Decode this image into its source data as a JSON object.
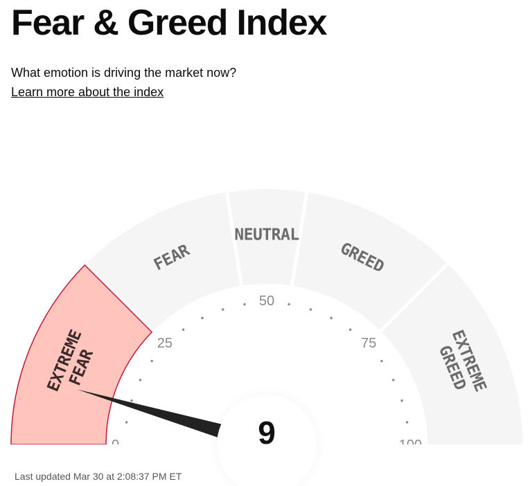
{
  "page": {
    "title": "Fear & Greed Index",
    "subtitle": "What emotion is driving the market now?",
    "learn_more": "Learn more about the index"
  },
  "gauge": {
    "value": 9,
    "value_text": "9",
    "active_segment": "extreme-fear",
    "segments": [
      {
        "id": "extreme-fear",
        "lines": [
          "EXTREME",
          "FEAR"
        ],
        "from": 0,
        "to": 25
      },
      {
        "id": "fear",
        "lines": [
          "FEAR"
        ],
        "from": 25,
        "to": 45
      },
      {
        "id": "neutral",
        "lines": [
          "NEUTRAL"
        ],
        "from": 45,
        "to": 55
      },
      {
        "id": "greed",
        "lines": [
          "GREED"
        ],
        "from": 55,
        "to": 75
      },
      {
        "id": "extreme-greed",
        "lines": [
          "EXTREME",
          "GREED"
        ],
        "from": 75,
        "to": 100
      }
    ],
    "tick_labels": [
      "0",
      "25",
      "50",
      "75",
      "100"
    ],
    "colors": {
      "segment_bg": "#f5f5f5",
      "active_fill": "#ffc5bd",
      "active_stroke": "#c4173a",
      "needle": "#222222",
      "dots": "#8f8f8f"
    }
  },
  "footer": {
    "last_updated": "Last updated Mar 30 at 2:08:37 PM ET"
  }
}
